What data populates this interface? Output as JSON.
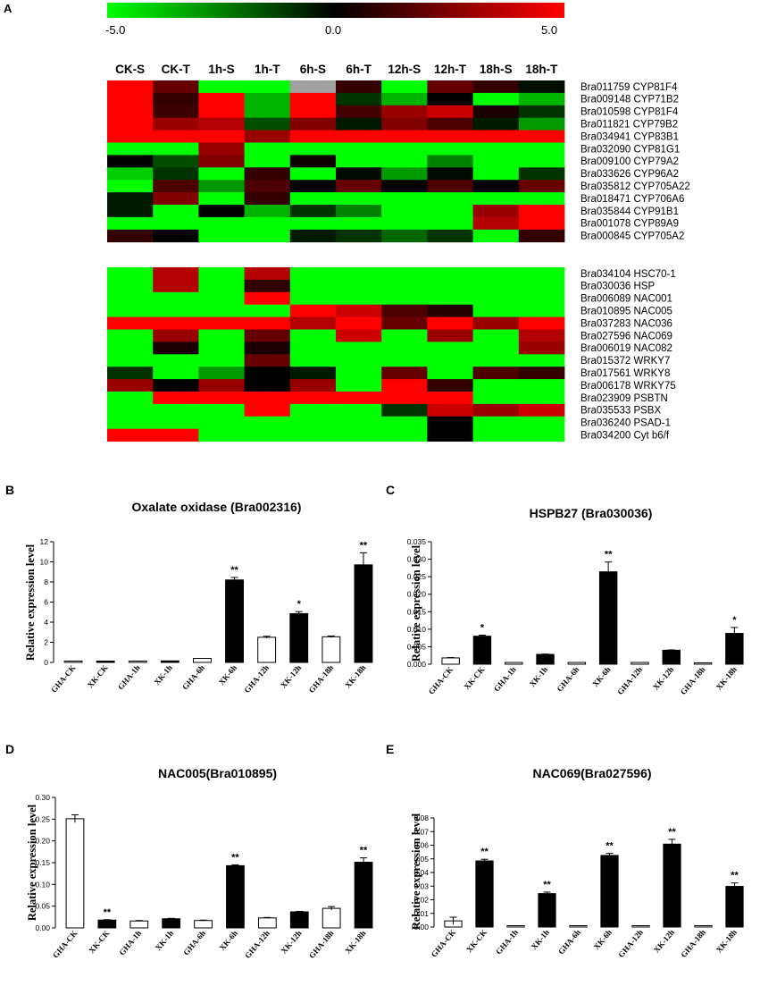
{
  "panels": [
    "A",
    "B",
    "C",
    "D",
    "E"
  ],
  "heatmap": {
    "colorbar": {
      "min_label": "-5.0",
      "mid_label": "0.0",
      "max_label": "5.0",
      "min": -5,
      "max": 5,
      "low_color": "#00ff00",
      "mid_color": "#000000",
      "high_color": "#ff0000"
    },
    "columns": [
      "CK-S",
      "CK-T",
      "1h-S",
      "1h-T",
      "6h-S",
      "6h-T",
      "12h-S",
      "12h-T",
      "18h-S",
      "18h-T"
    ],
    "groups": [
      {
        "rows": [
          "Bra011759 CYP81F4",
          "Bra009148 CYP71B2",
          "Bra010598 CYP81F4",
          "Bra011821 CYP79B2",
          "Bra034941 CYP83B1",
          "Bra032090 CYP81G1",
          "Bra009100 CYP79A2",
          "Bra033626 CYP96A2",
          "Bra035812 CYP705A22",
          "Bra018471 CYP706A6",
          "Bra035844 CYP91B1",
          "Bra001078 CYP89A9",
          "Bra000845 CYP705A2"
        ],
        "values": [
          [
            5,
            2,
            -5,
            -5,
            null,
            1,
            -5,
            2,
            1,
            -0.3
          ],
          [
            5,
            1,
            5,
            -3.5,
            5,
            -1,
            -3.5,
            0,
            -5,
            -3.5
          ],
          [
            5,
            1.2,
            5,
            -3.5,
            5,
            1.3,
            3,
            4,
            0.5,
            -1
          ],
          [
            5,
            3,
            3.5,
            -1.5,
            2.5,
            -0.5,
            2.5,
            1.5,
            -0.5,
            -3
          ],
          [
            5,
            5,
            5,
            3,
            5,
            5,
            5,
            5,
            5,
            5
          ],
          [
            -5,
            -5,
            3,
            -5,
            -5,
            -5,
            -5,
            -5,
            -5,
            -5
          ],
          [
            0,
            -1.5,
            2.5,
            -5,
            0.3,
            -5,
            -5,
            -2.5,
            -5,
            -5
          ],
          [
            -4,
            -1,
            -5,
            1,
            -5,
            -0.2,
            -3,
            -0.2,
            -5,
            -1
          ],
          [
            -5,
            1.5,
            -3,
            1.5,
            0,
            2,
            0,
            1.5,
            0,
            2
          ],
          [
            -0.5,
            2.5,
            -5,
            1,
            -5,
            -5,
            -5,
            -5,
            -5,
            -5
          ],
          [
            -0.5,
            -5,
            0,
            -3.5,
            -1,
            -2.5,
            -5,
            -5,
            3,
            5
          ],
          [
            -5,
            -5,
            -5,
            -5,
            -5,
            -5,
            -5,
            -5,
            3.5,
            5
          ],
          [
            1,
            0,
            -5,
            -5,
            -0.5,
            -1,
            -2,
            -1,
            -5,
            1
          ]
        ]
      },
      {
        "rows": [
          "Bra034104 HSC70-1",
          "Bra030036 HSP",
          "Bra006089 NAC001",
          "Bra010895 NAC005",
          "Bra037283 NAC036",
          "Bra027596 NAC069",
          "Bra006019 NAC082",
          "Bra015372 WRKY7",
          "Bra017561 WRKY8",
          "Bra006178 WRKY75",
          "Bra023909 PSBTN",
          "Bra035533 PSBX",
          "Bra036240 PSAD-1",
          "Bra034200 Cyt b6/f"
        ],
        "values": [
          [
            -5,
            3.5,
            -5,
            3.5,
            -5,
            -5,
            -5,
            -5,
            -5,
            -5
          ],
          [
            -5,
            3.5,
            -5,
            1,
            -5,
            -5,
            -5,
            -5,
            -5,
            -5
          ],
          [
            -5,
            -5,
            -5,
            5,
            -5,
            -5,
            -5,
            -5,
            -5,
            -5
          ],
          [
            -5,
            -5,
            -5,
            -5,
            5,
            4,
            1.5,
            0.7,
            -5,
            -5
          ],
          [
            5,
            5,
            5,
            5,
            3.5,
            5,
            2,
            5,
            3,
            5
          ],
          [
            -5,
            3,
            -5,
            2,
            -5,
            4,
            -5,
            3,
            -5,
            3.5
          ],
          [
            -5,
            0.5,
            -5,
            0.5,
            -5,
            -5,
            -5,
            -5,
            -5,
            3
          ],
          [
            -5,
            -5,
            -5,
            2,
            -5,
            -5,
            -5,
            -5,
            -5,
            -5
          ],
          [
            -1,
            -5,
            -3,
            0,
            -0.5,
            -5,
            2,
            -5,
            1.5,
            1
          ],
          [
            3,
            0,
            3,
            0,
            3,
            -5,
            5,
            1,
            -5,
            -5
          ],
          [
            -5,
            5,
            5,
            5,
            5,
            5,
            5,
            5,
            -5,
            -5
          ],
          [
            -5,
            -5,
            -5,
            5,
            -5,
            -5,
            -1,
            4,
            3,
            4
          ],
          [
            -5,
            -5,
            -5,
            -5,
            -5,
            -5,
            -5,
            0,
            -5,
            -5
          ],
          [
            5,
            5,
            -5,
            -5,
            -5,
            -5,
            -5,
            0,
            -5,
            -5
          ]
        ]
      }
    ]
  },
  "chart_data": [
    {
      "panel": "B",
      "type": "bar",
      "title": "Oxalate oxidase (Bra002316)",
      "ylabel": "Relative expression level",
      "ylim": [
        0,
        12
      ],
      "yticks": [
        "0",
        "2",
        "4",
        "6",
        "8",
        "10",
        "12"
      ],
      "categories": [
        "GHA-CK",
        "XK-CK",
        "GHA-1h",
        "XK-1h",
        "GHA-6h",
        "XK-6h",
        "GHA-12h",
        "XK-12h",
        "GHA-18h",
        "XK-18h"
      ],
      "values": [
        0.1,
        0.05,
        0.02,
        0.15,
        0.4,
        8.2,
        2.5,
        4.85,
        2.55,
        9.7
      ],
      "errors": [
        0,
        0,
        0,
        0,
        0,
        0.25,
        0.1,
        0.2,
        0.08,
        1.2
      ],
      "fills": [
        "w",
        "b",
        "w",
        "b",
        "w",
        "b",
        "w",
        "b",
        "w",
        "b"
      ],
      "significance": [
        "",
        "",
        "",
        "",
        "",
        "**",
        "",
        "*",
        "",
        "**"
      ]
    },
    {
      "panel": "C",
      "type": "bar",
      "title": "HSPB27 (Bra030036)",
      "ylabel": "Relative expression level",
      "ylim": [
        0,
        0.035
      ],
      "yticks": [
        "0.000",
        "0.005",
        "0.010",
        "0.015",
        "0.020",
        "0.025",
        "0.030",
        "0.035"
      ],
      "categories": [
        "GHA-CK",
        "XK-CK",
        "GHA-1h",
        "XK-1h",
        "GHA-6h",
        "XK-6h",
        "GHA-12h",
        "XK-12h",
        "GHA-18h",
        "XK-18h"
      ],
      "values": [
        0.0018,
        0.008,
        0.0005,
        0.0028,
        0.0005,
        0.0264,
        0.0005,
        0.004,
        0.0004,
        0.0088
      ],
      "errors": [
        0.0001,
        0.0003,
        0,
        0.0001,
        0,
        0.0028,
        0,
        0.0001,
        0,
        0.0017
      ],
      "fills": [
        "w",
        "b",
        "w",
        "b",
        "w",
        "b",
        "w",
        "b",
        "w",
        "b"
      ],
      "significance": [
        "",
        "*",
        "",
        "",
        "",
        "**",
        "",
        "",
        "",
        "*"
      ]
    },
    {
      "panel": "D",
      "type": "bar",
      "title": "NAC005(Bra010895)",
      "ylabel": "Relative expression level",
      "ylim": [
        0,
        0.3
      ],
      "yticks": [
        "0.00",
        "0.05",
        "0.10",
        "0.15",
        "0.20",
        "0.25",
        "0.30"
      ],
      "categories": [
        "GHA-CK",
        "XK-CK",
        "GHA-1h",
        "XK-1h",
        "GHA-6h",
        "XK-6h",
        "GHA-12h",
        "XK-12h",
        "GHA-18h",
        "XK-18h"
      ],
      "values": [
        0.251,
        0.018,
        0.016,
        0.021,
        0.017,
        0.143,
        0.023,
        0.037,
        0.045,
        0.151
      ],
      "errors": [
        0.009,
        0.001,
        0.001,
        0.001,
        0.001,
        0.002,
        0.001,
        0.001,
        0.004,
        0.01
      ],
      "fills": [
        "w",
        "b",
        "w",
        "b",
        "w",
        "b",
        "w",
        "b",
        "w",
        "b"
      ],
      "significance": [
        "",
        "**",
        "",
        "",
        "",
        "**",
        "",
        "",
        "",
        "**"
      ]
    },
    {
      "panel": "E",
      "type": "bar",
      "title": "NAC069(Bra027596)",
      "ylabel": "Relative expression level",
      "ylim": [
        0,
        0.08
      ],
      "yticks": [
        "0.00",
        "0.01",
        "0.02",
        "0.03",
        "0.04",
        "0.05",
        "0.06",
        "0.07",
        "0.08"
      ],
      "categories": [
        "GHA-CK",
        "XK-CK",
        "GHA-1h",
        "XK-1h",
        "GHA-6h",
        "XK-6h",
        "GHA-12h",
        "XK-12h",
        "GHA-18h",
        "XK-18h"
      ],
      "values": [
        0.0045,
        0.0485,
        0.0008,
        0.0245,
        0.0008,
        0.0525,
        0.0008,
        0.0608,
        0.0008,
        0.0298
      ],
      "errors": [
        0.0027,
        0.0012,
        0,
        0.0011,
        0,
        0.0015,
        0,
        0.0035,
        0,
        0.0025
      ],
      "fills": [
        "w",
        "b",
        "w",
        "b",
        "w",
        "b",
        "w",
        "b",
        "w",
        "b"
      ],
      "significance": [
        "",
        "**",
        "",
        "**",
        "",
        "**",
        "",
        "**",
        "",
        "**"
      ]
    }
  ]
}
